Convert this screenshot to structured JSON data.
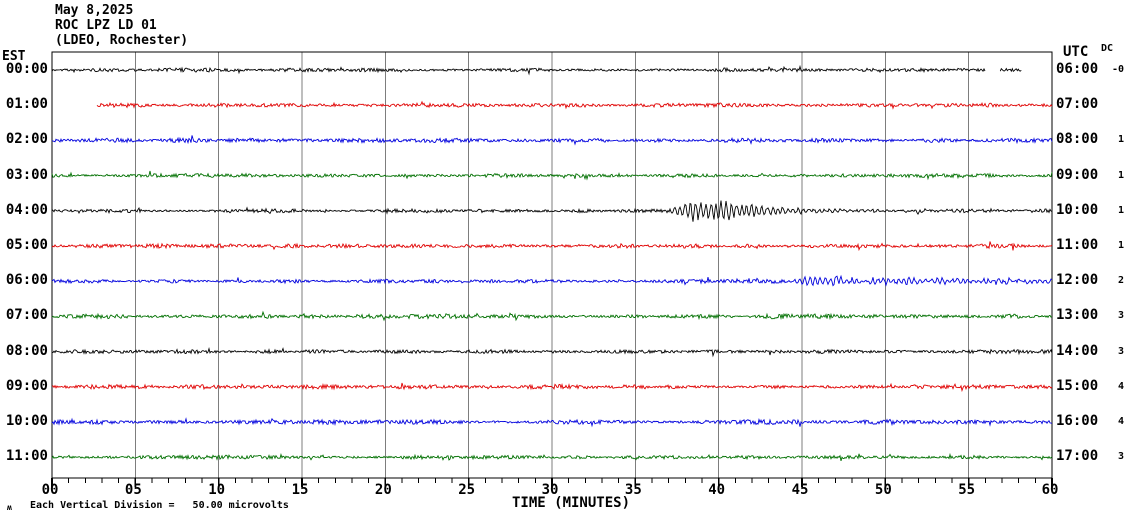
{
  "header": {
    "date": "May 8,2025",
    "station": "ROC LPZ LD 01",
    "location": "(LDEO, Rochester)"
  },
  "axis": {
    "left_tz": "EST",
    "right_tz": "UTC",
    "dc_header": "DC",
    "x_title": "TIME (MINUTES)",
    "x_major_ticks": [
      "00",
      "05",
      "10",
      "15",
      "20",
      "25",
      "30",
      "35",
      "40",
      "45",
      "50",
      "55",
      "60"
    ],
    "x_major_step_minutes": 5,
    "x_minor_step_minutes": 1,
    "footnote": "Each Vertical Division =   50.00 microvolts",
    "corner_glyph": "ʍ"
  },
  "colors": {
    "trace_black": "#000000",
    "trace_red": "#e00000",
    "trace_blue": "#0000dd",
    "trace_green": "#007000",
    "grid": "#7d7d7d",
    "border": "#000000",
    "background": "#ffffff"
  },
  "chart_data": {
    "type": "line",
    "title": "Helicorder ROC LPZ LD 01 (LDEO, Rochester) May 8,2025",
    "x_range_minutes": [
      0,
      60
    ],
    "minutes_per_row": 60,
    "grid": "vertical lines every 5 minutes",
    "rows": [
      {
        "est": "00:00",
        "utc": "06:00",
        "dc": "-0",
        "color": "black",
        "base_amp": 1.5,
        "segments": [
          [
            0,
            56.0
          ],
          [
            56.9,
            58.2
          ]
        ],
        "event_envelope": null
      },
      {
        "est": "01:00",
        "utc": "07:00",
        "dc": "",
        "color": "red",
        "base_amp": 1.6,
        "segments": [
          [
            2.7,
            60
          ]
        ],
        "event_envelope": null
      },
      {
        "est": "02:00",
        "utc": "08:00",
        "dc": "1",
        "color": "blue",
        "base_amp": 1.7,
        "segments": [
          [
            0,
            60
          ]
        ],
        "event_envelope": null
      },
      {
        "est": "03:00",
        "utc": "09:00",
        "dc": "1",
        "color": "green",
        "base_amp": 1.5,
        "segments": [
          [
            0,
            60
          ]
        ],
        "event_envelope": null
      },
      {
        "est": "04:00",
        "utc": "10:00",
        "dc": "1",
        "color": "black",
        "base_amp": 1.4,
        "segments": [
          [
            0,
            60
          ]
        ],
        "event_envelope": [
          [
            36.5,
            0
          ],
          [
            37.2,
            2.0
          ],
          [
            37.8,
            5.5
          ],
          [
            38.4,
            9.5
          ],
          [
            39.2,
            7.0
          ],
          [
            40.0,
            10.0
          ],
          [
            40.8,
            8.0
          ],
          [
            41.6,
            6.5
          ],
          [
            42.5,
            5.0
          ],
          [
            43.5,
            3.0
          ],
          [
            45.0,
            2.0
          ],
          [
            47.0,
            1.2
          ],
          [
            50.0,
            0.8
          ],
          [
            55.0,
            0.5
          ],
          [
            60.0,
            0.4
          ]
        ]
      },
      {
        "est": "05:00",
        "utc": "11:00",
        "dc": "1",
        "color": "red",
        "base_amp": 1.5,
        "segments": [
          [
            0,
            60
          ]
        ],
        "event_envelope": null
      },
      {
        "est": "06:00",
        "utc": "12:00",
        "dc": "2",
        "color": "blue",
        "base_amp": 1.5,
        "segments": [
          [
            0,
            60
          ]
        ],
        "event_envelope": [
          [
            44.3,
            0
          ],
          [
            45.0,
            3.2
          ],
          [
            45.7,
            4.6
          ],
          [
            46.4,
            2.6
          ],
          [
            47.1,
            4.4
          ],
          [
            47.9,
            2.2
          ],
          [
            48.8,
            1.6
          ],
          [
            50.0,
            2.4
          ],
          [
            51.3,
            3.4
          ],
          [
            52.3,
            1.8
          ],
          [
            53.3,
            2.9
          ],
          [
            54.5,
            1.6
          ],
          [
            56.0,
            2.3
          ],
          [
            57.5,
            1.4
          ],
          [
            59.0,
            1.6
          ],
          [
            60.0,
            1.2
          ]
        ]
      },
      {
        "est": "07:00",
        "utc": "13:00",
        "dc": "3",
        "color": "green",
        "base_amp": 1.7,
        "segments": [
          [
            0,
            60
          ]
        ],
        "event_envelope": null
      },
      {
        "est": "08:00",
        "utc": "14:00",
        "dc": "3",
        "color": "black",
        "base_amp": 1.5,
        "segments": [
          [
            0,
            60
          ]
        ],
        "event_envelope": null
      },
      {
        "est": "09:00",
        "utc": "15:00",
        "dc": "4",
        "color": "red",
        "base_amp": 1.7,
        "segments": [
          [
            0,
            60
          ]
        ],
        "event_envelope": null
      },
      {
        "est": "10:00",
        "utc": "16:00",
        "dc": "4",
        "color": "blue",
        "base_amp": 1.8,
        "segments": [
          [
            0,
            60
          ]
        ],
        "event_envelope": null
      },
      {
        "est": "11:00",
        "utc": "17:00",
        "dc": "3",
        "color": "green",
        "base_amp": 1.5,
        "segments": [
          [
            0,
            60
          ]
        ],
        "event_envelope": null
      }
    ],
    "events": [
      {
        "row_est": "04:00",
        "start_minute": 37,
        "peak_minute": 40,
        "end_minute": 47,
        "description": "strong seismic arrival on black trace"
      },
      {
        "row_est": "06:00",
        "start_minute": 45,
        "end_minute": 58,
        "description": "moderate seismic signal on blue trace"
      }
    ]
  }
}
